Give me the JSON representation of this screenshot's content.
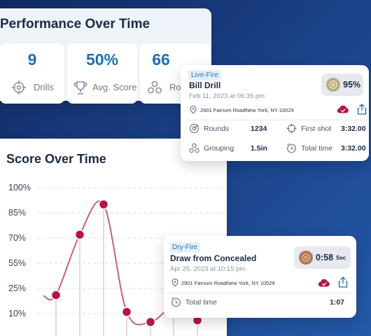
{
  "performance": {
    "title": "Performance Over Time",
    "stats": [
      {
        "value": "9",
        "label": "Drills",
        "icon": "crosshair-icon"
      },
      {
        "value": "50%",
        "label": "Avg. Score",
        "icon": "trophy-icon"
      },
      {
        "value": "66",
        "label": "Ro",
        "icon": "rounds-icon"
      }
    ]
  },
  "score_chart": {
    "title": "Score Over Time"
  },
  "chart_data": {
    "type": "line",
    "title": "Score Over Time",
    "xlabel": "",
    "ylabel": "",
    "yticks": [
      "100%",
      "85%",
      "70%",
      "55%",
      "25%",
      "10%"
    ],
    "values": [
      21,
      72,
      90,
      11,
      5,
      14,
      6
    ],
    "colors": {
      "line": "#c9607a",
      "point": "#b01842"
    }
  },
  "session1": {
    "tag": "Live-Fire",
    "name": "Bill Drill",
    "date": "Feb 11, 2023 at 06:35 pm",
    "address": "2901 Farnum RoadNew York, NY 10029",
    "score": "95%",
    "metrics": [
      {
        "label": "Rounds",
        "value": "1234",
        "icon": "target-icon"
      },
      {
        "label": "First shot",
        "value": "3:32.00",
        "icon": "crosshair-icon"
      },
      {
        "label": "Grouping",
        "value": "1.5in",
        "icon": "grouping-icon"
      },
      {
        "label": "Total time",
        "value": "3:32.00",
        "icon": "timer-icon"
      }
    ]
  },
  "session2": {
    "tag": "Dry-Fire",
    "name": "Draw from Concealed",
    "date": "Apr 25, 2023 at 10:15 pm",
    "address": "2901 Farnum RoadNew York, NY 10029",
    "time": "0:58",
    "time_unit": "Sec",
    "metrics": [
      {
        "label": "Total time",
        "value": "1:07",
        "icon": "timer-icon"
      }
    ]
  },
  "colors": {
    "accent": "#1f6fb5",
    "brand_red": "#b01842"
  }
}
